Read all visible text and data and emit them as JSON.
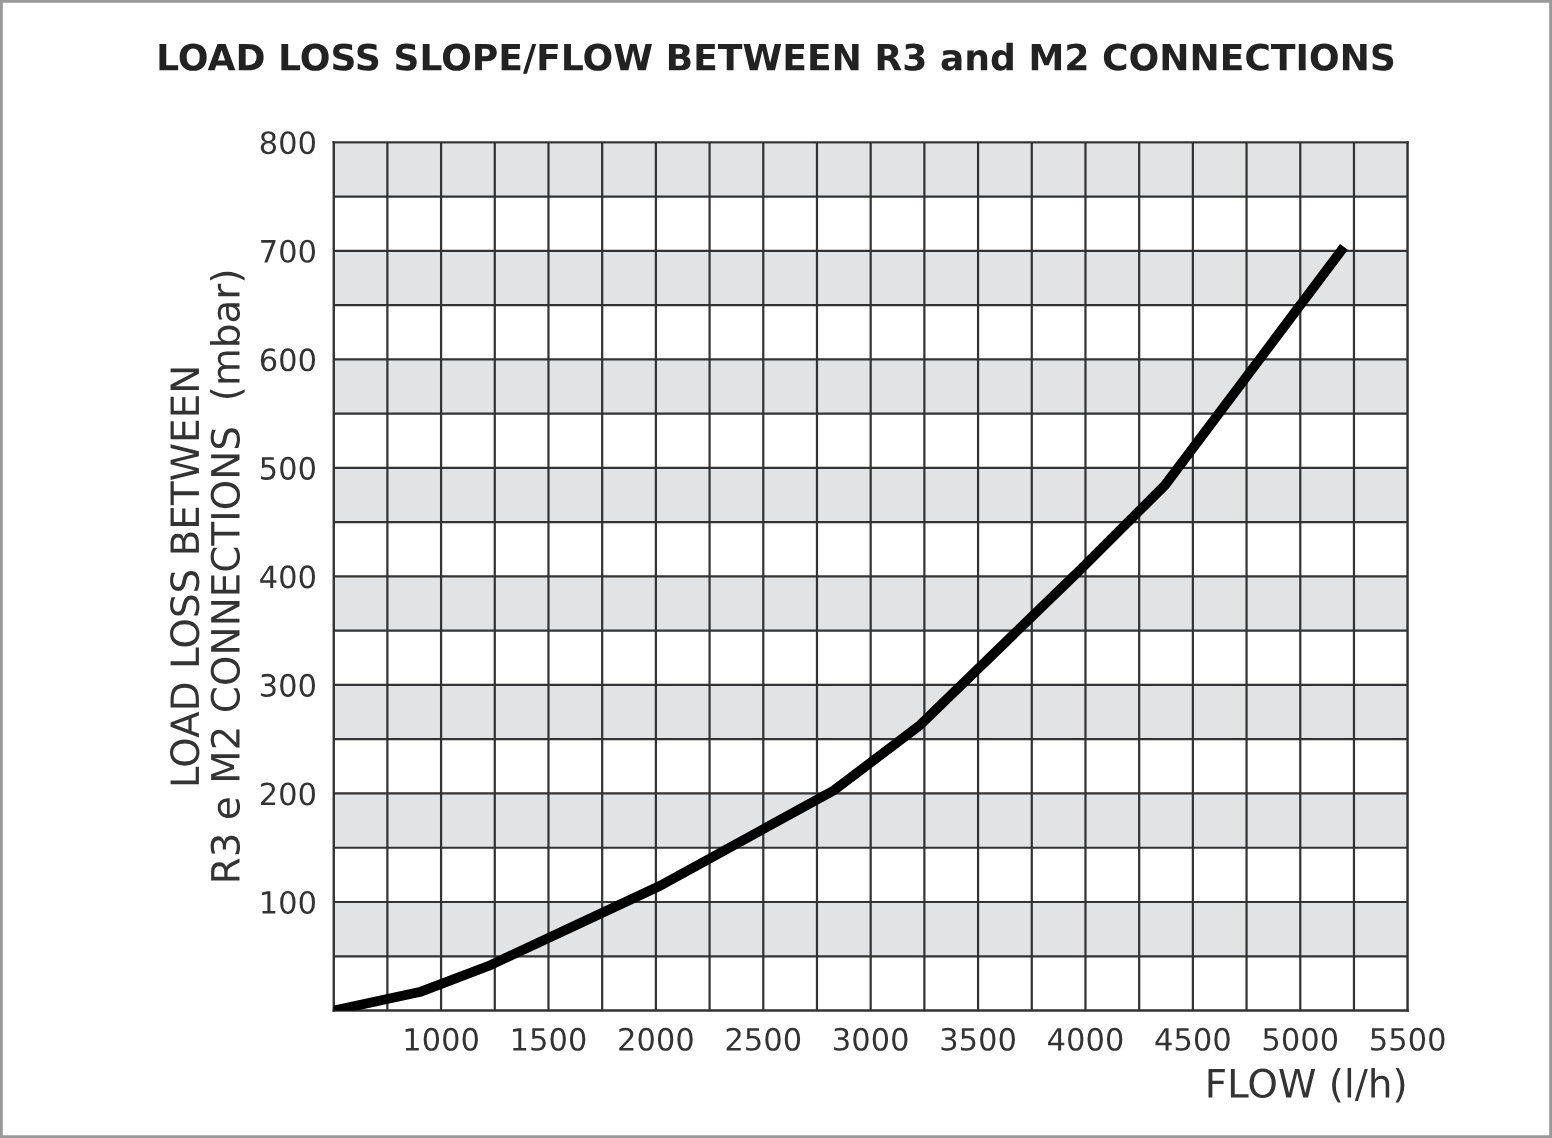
{
  "chart_data": {
    "type": "line",
    "title": "LOAD LOSS SLOPE/FLOW BETWEEN R3 and M2 CONNECTIONS",
    "xlabel": "FLOW (l/h)",
    "ylabel": "LOAD LOSS BETWEEN\nR3 e M2 CONNECTIONS  (mbar)",
    "x": [
      500,
      900,
      1220,
      2020,
      2830,
      3230,
      3970,
      4370,
      5190
    ],
    "series": [
      {
        "color": "#000000",
        "values": [
          0,
          17,
          41,
          115,
          203,
          263,
          405,
          484,
          700
        ]
      }
    ],
    "xlim": [
      500,
      5500
    ],
    "ylim": [
      0,
      800
    ],
    "xticks": [
      {
        "value": 500,
        "label": null
      },
      {
        "value": 750,
        "label": null
      },
      1000,
      {
        "value": 1250,
        "label": null
      },
      1500,
      {
        "value": 1750,
        "label": null
      },
      2000,
      {
        "value": 2250,
        "label": null
      },
      2500,
      {
        "value": 2750,
        "label": null
      },
      3000,
      {
        "value": 3250,
        "label": null
      },
      3500,
      {
        "value": 3750,
        "label": null
      },
      4000,
      {
        "value": 4250,
        "label": null
      },
      4500,
      {
        "value": 4750,
        "label": null
      },
      5000,
      {
        "value": 5250,
        "label": null
      },
      5500
    ],
    "yticks": [
      {
        "value": 0,
        "label": null
      },
      {
        "value": 50,
        "label": null
      },
      100,
      {
        "value": 150,
        "label": null
      },
      200,
      {
        "value": 250,
        "label": null
      },
      300,
      {
        "value": 350,
        "label": null
      },
      400,
      {
        "value": 450,
        "label": null
      },
      500,
      {
        "value": 550,
        "label": null
      },
      600,
      {
        "value": 650,
        "label": null
      },
      700,
      {
        "value": 750,
        "label": null
      },
      800
    ],
    "grid": true,
    "line_style": "solid",
    "marker": "none",
    "bands": [
      {
        "axis": "y",
        "from": 50,
        "to": 100,
        "color": "#e2e3e5"
      },
      {
        "axis": "y",
        "from": 150,
        "to": 200,
        "color": "#e2e3e5"
      },
      {
        "axis": "y",
        "from": 250,
        "to": 300,
        "color": "#e2e3e5"
      },
      {
        "axis": "y",
        "from": 350,
        "to": 400,
        "color": "#e2e3e5"
      },
      {
        "axis": "y",
        "from": 450,
        "to": 500,
        "color": "#e2e3e5"
      },
      {
        "axis": "y",
        "from": 550,
        "to": 600,
        "color": "#e2e3e5"
      },
      {
        "axis": "y",
        "from": 650,
        "to": 700,
        "color": "#e2e3e5"
      },
      {
        "axis": "y",
        "from": 750,
        "to": 800,
        "color": "#e2e3e5"
      }
    ]
  }
}
